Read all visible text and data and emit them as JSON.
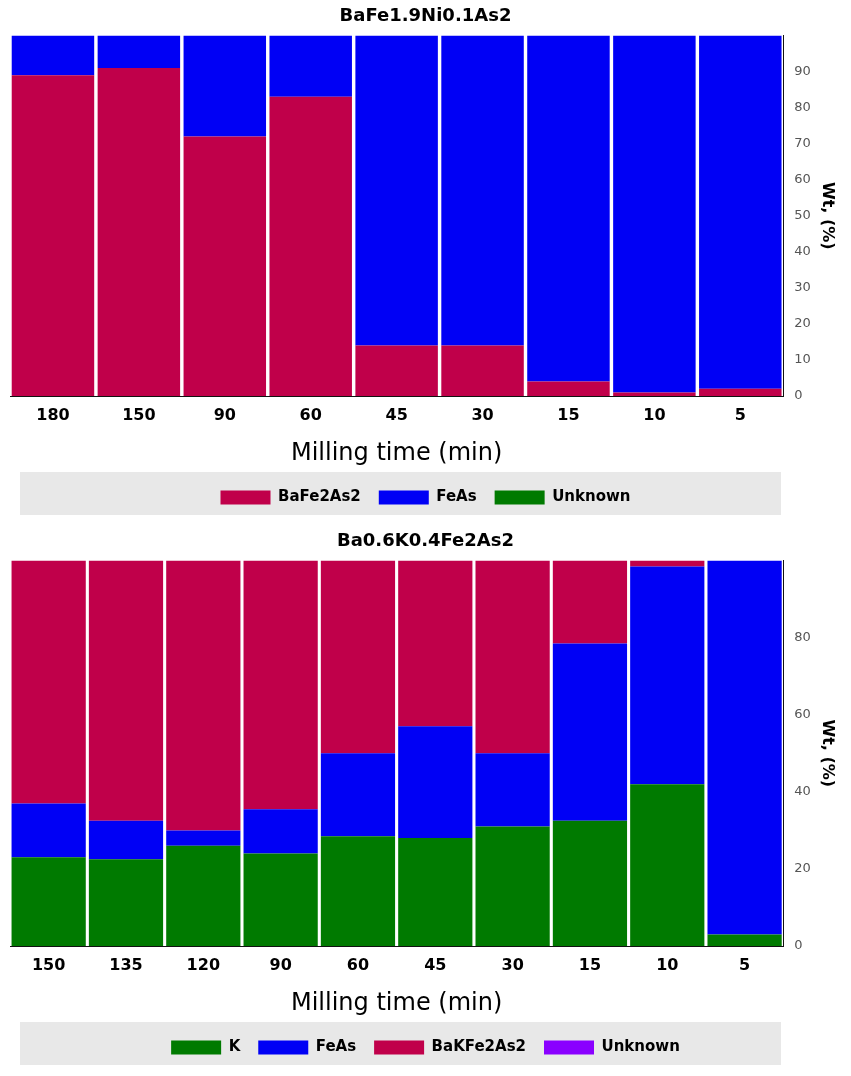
{
  "chart_data": [
    {
      "type": "bar",
      "title": "BaFe1.9Ni0.1As2",
      "xlabel": "Milling time (min)",
      "ylabel": "Wt, (%)",
      "stacked": true,
      "legend": "bottom",
      "grid": false,
      "categories": [
        "180",
        "150",
        "90",
        "60",
        "45",
        "30",
        "15",
        "10",
        "5"
      ],
      "ylim": [
        0,
        100
      ],
      "yticks": [
        0,
        10,
        20,
        30,
        40,
        50,
        60,
        70,
        80,
        90
      ],
      "series": [
        {
          "name": "BaFe2As2",
          "color": "#c0004a",
          "values": [
            89,
            91,
            72,
            83,
            14,
            14,
            4,
            1,
            2
          ]
        },
        {
          "name": "FeAs",
          "color": "#0000f5",
          "values": [
            11,
            9,
            28,
            17,
            86,
            86,
            96,
            99,
            98
          ]
        },
        {
          "name": "Unknown",
          "color": "#007a00",
          "values": [
            0,
            0,
            0,
            0,
            0,
            0,
            0,
            0,
            0
          ]
        }
      ]
    },
    {
      "type": "bar",
      "title": "Ba0.6K0.4Fe2As2",
      "xlabel": "Milling time (min)",
      "ylabel": "Wt, (%)",
      "stacked": true,
      "legend": "bottom",
      "grid": false,
      "categories": [
        "150",
        "135",
        "120",
        "90",
        "60",
        "45",
        "30",
        "15",
        "10",
        "5"
      ],
      "ylim": [
        0,
        100
      ],
      "yticks": [
        0,
        20,
        40,
        60,
        80
      ],
      "series": [
        {
          "name": "K",
          "color": "#007a00",
          "values": [
            23,
            22.5,
            26,
            24,
            28.5,
            28,
            31,
            32.5,
            42,
            3
          ]
        },
        {
          "name": "FeAs",
          "color": "#0000f5",
          "values": [
            14,
            10,
            4,
            11.5,
            21.5,
            29,
            19,
            46,
            56.5,
            97
          ]
        },
        {
          "name": "BaKFe2As2",
          "color": "#c0004a",
          "values": [
            63,
            67.5,
            70,
            64.5,
            50,
            43,
            50,
            21.5,
            1.5,
            0
          ]
        },
        {
          "name": "Unknown",
          "color": "#8a00ff",
          "values": [
            0,
            0,
            0,
            0,
            0,
            0,
            0,
            0,
            0,
            0
          ]
        }
      ]
    }
  ]
}
